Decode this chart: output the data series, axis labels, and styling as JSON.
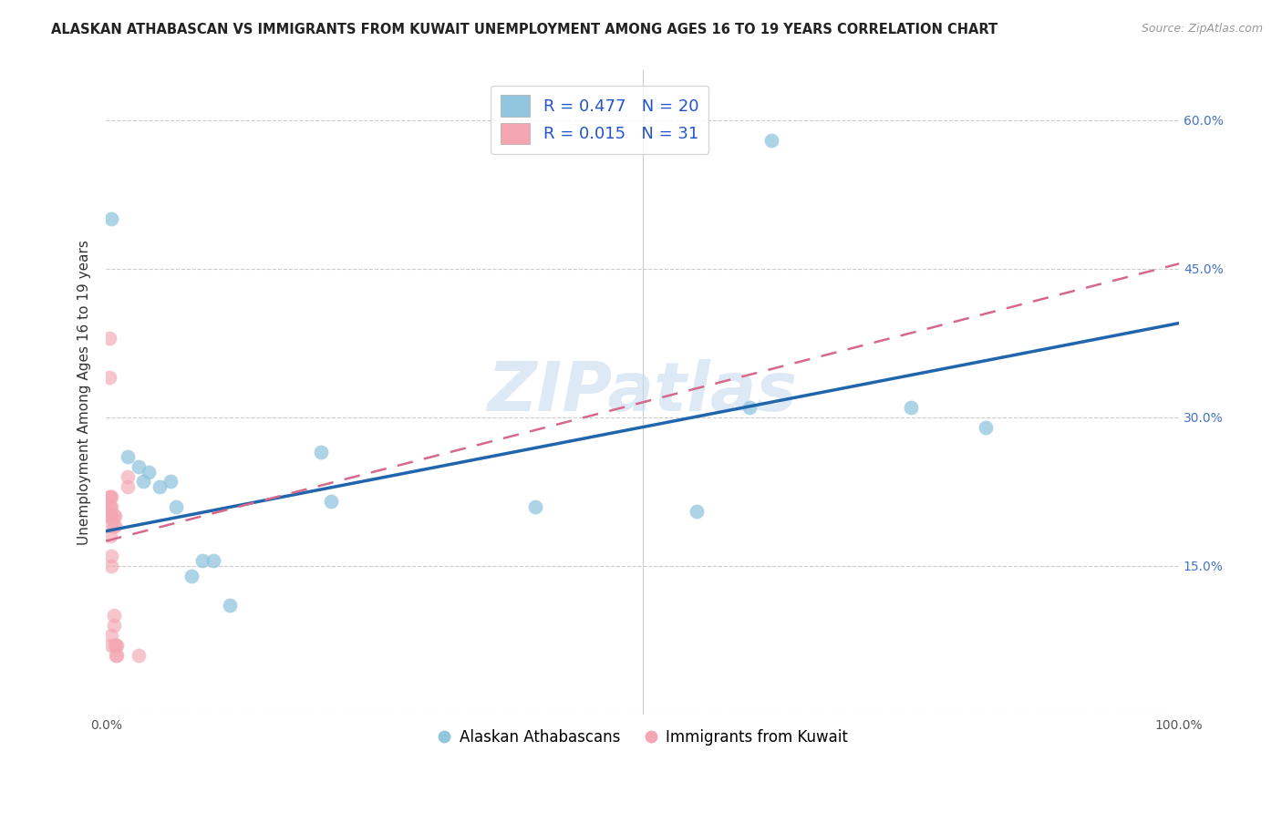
{
  "title": "ALASKAN ATHABASCAN VS IMMIGRANTS FROM KUWAIT UNEMPLOYMENT AMONG AGES 16 TO 19 YEARS CORRELATION CHART",
  "source": "Source: ZipAtlas.com",
  "ylabel": "Unemployment Among Ages 16 to 19 years",
  "xlim": [
    0,
    1.0
  ],
  "ylim": [
    0,
    0.65
  ],
  "xticks": [
    0.0,
    0.2,
    0.4,
    0.6,
    0.8,
    1.0
  ],
  "xticklabels": [
    "0.0%",
    "",
    "",
    "",
    "",
    "100.0%"
  ],
  "ytick_positions": [
    0.0,
    0.15,
    0.3,
    0.45,
    0.6
  ],
  "yticklabels_right": [
    "",
    "15.0%",
    "30.0%",
    "45.0%",
    "60.0%"
  ],
  "blue_color": "#92c5de",
  "pink_color": "#f4a7b2",
  "line_blue": "#2166ac",
  "line_pink": "#d6698a",
  "watermark": "ZIPatlas",
  "blue_x": [
    0.005,
    0.02,
    0.03,
    0.035,
    0.04,
    0.05,
    0.06,
    0.065,
    0.08,
    0.09,
    0.1,
    0.115,
    0.2,
    0.21,
    0.4,
    0.55,
    0.6,
    0.62,
    0.75,
    0.82
  ],
  "blue_y": [
    0.5,
    0.26,
    0.25,
    0.235,
    0.245,
    0.23,
    0.235,
    0.21,
    0.14,
    0.155,
    0.155,
    0.11,
    0.265,
    0.215,
    0.21,
    0.205,
    0.31,
    0.58,
    0.31,
    0.29
  ],
  "pink_x": [
    0.003,
    0.003,
    0.003,
    0.003,
    0.003,
    0.004,
    0.004,
    0.004,
    0.004,
    0.004,
    0.005,
    0.005,
    0.005,
    0.005,
    0.005,
    0.005,
    0.005,
    0.007,
    0.007,
    0.007,
    0.007,
    0.008,
    0.008,
    0.008,
    0.009,
    0.009,
    0.01,
    0.01,
    0.02,
    0.02,
    0.03
  ],
  "pink_y": [
    0.38,
    0.34,
    0.22,
    0.21,
    0.2,
    0.22,
    0.21,
    0.2,
    0.19,
    0.18,
    0.22,
    0.21,
    0.2,
    0.16,
    0.15,
    0.08,
    0.07,
    0.2,
    0.19,
    0.1,
    0.09,
    0.2,
    0.19,
    0.07,
    0.07,
    0.06,
    0.07,
    0.06,
    0.24,
    0.23,
    0.06
  ],
  "blue_line_x": [
    0.0,
    1.0
  ],
  "blue_line_y": [
    0.185,
    0.395
  ],
  "pink_line_x": [
    0.0,
    1.0
  ],
  "pink_line_y": [
    0.175,
    0.455
  ],
  "background_color": "#ffffff",
  "grid_color": "#cccccc",
  "title_fontsize": 10.5,
  "axis_label_fontsize": 11,
  "tick_fontsize": 10,
  "legend_fontsize": 13
}
